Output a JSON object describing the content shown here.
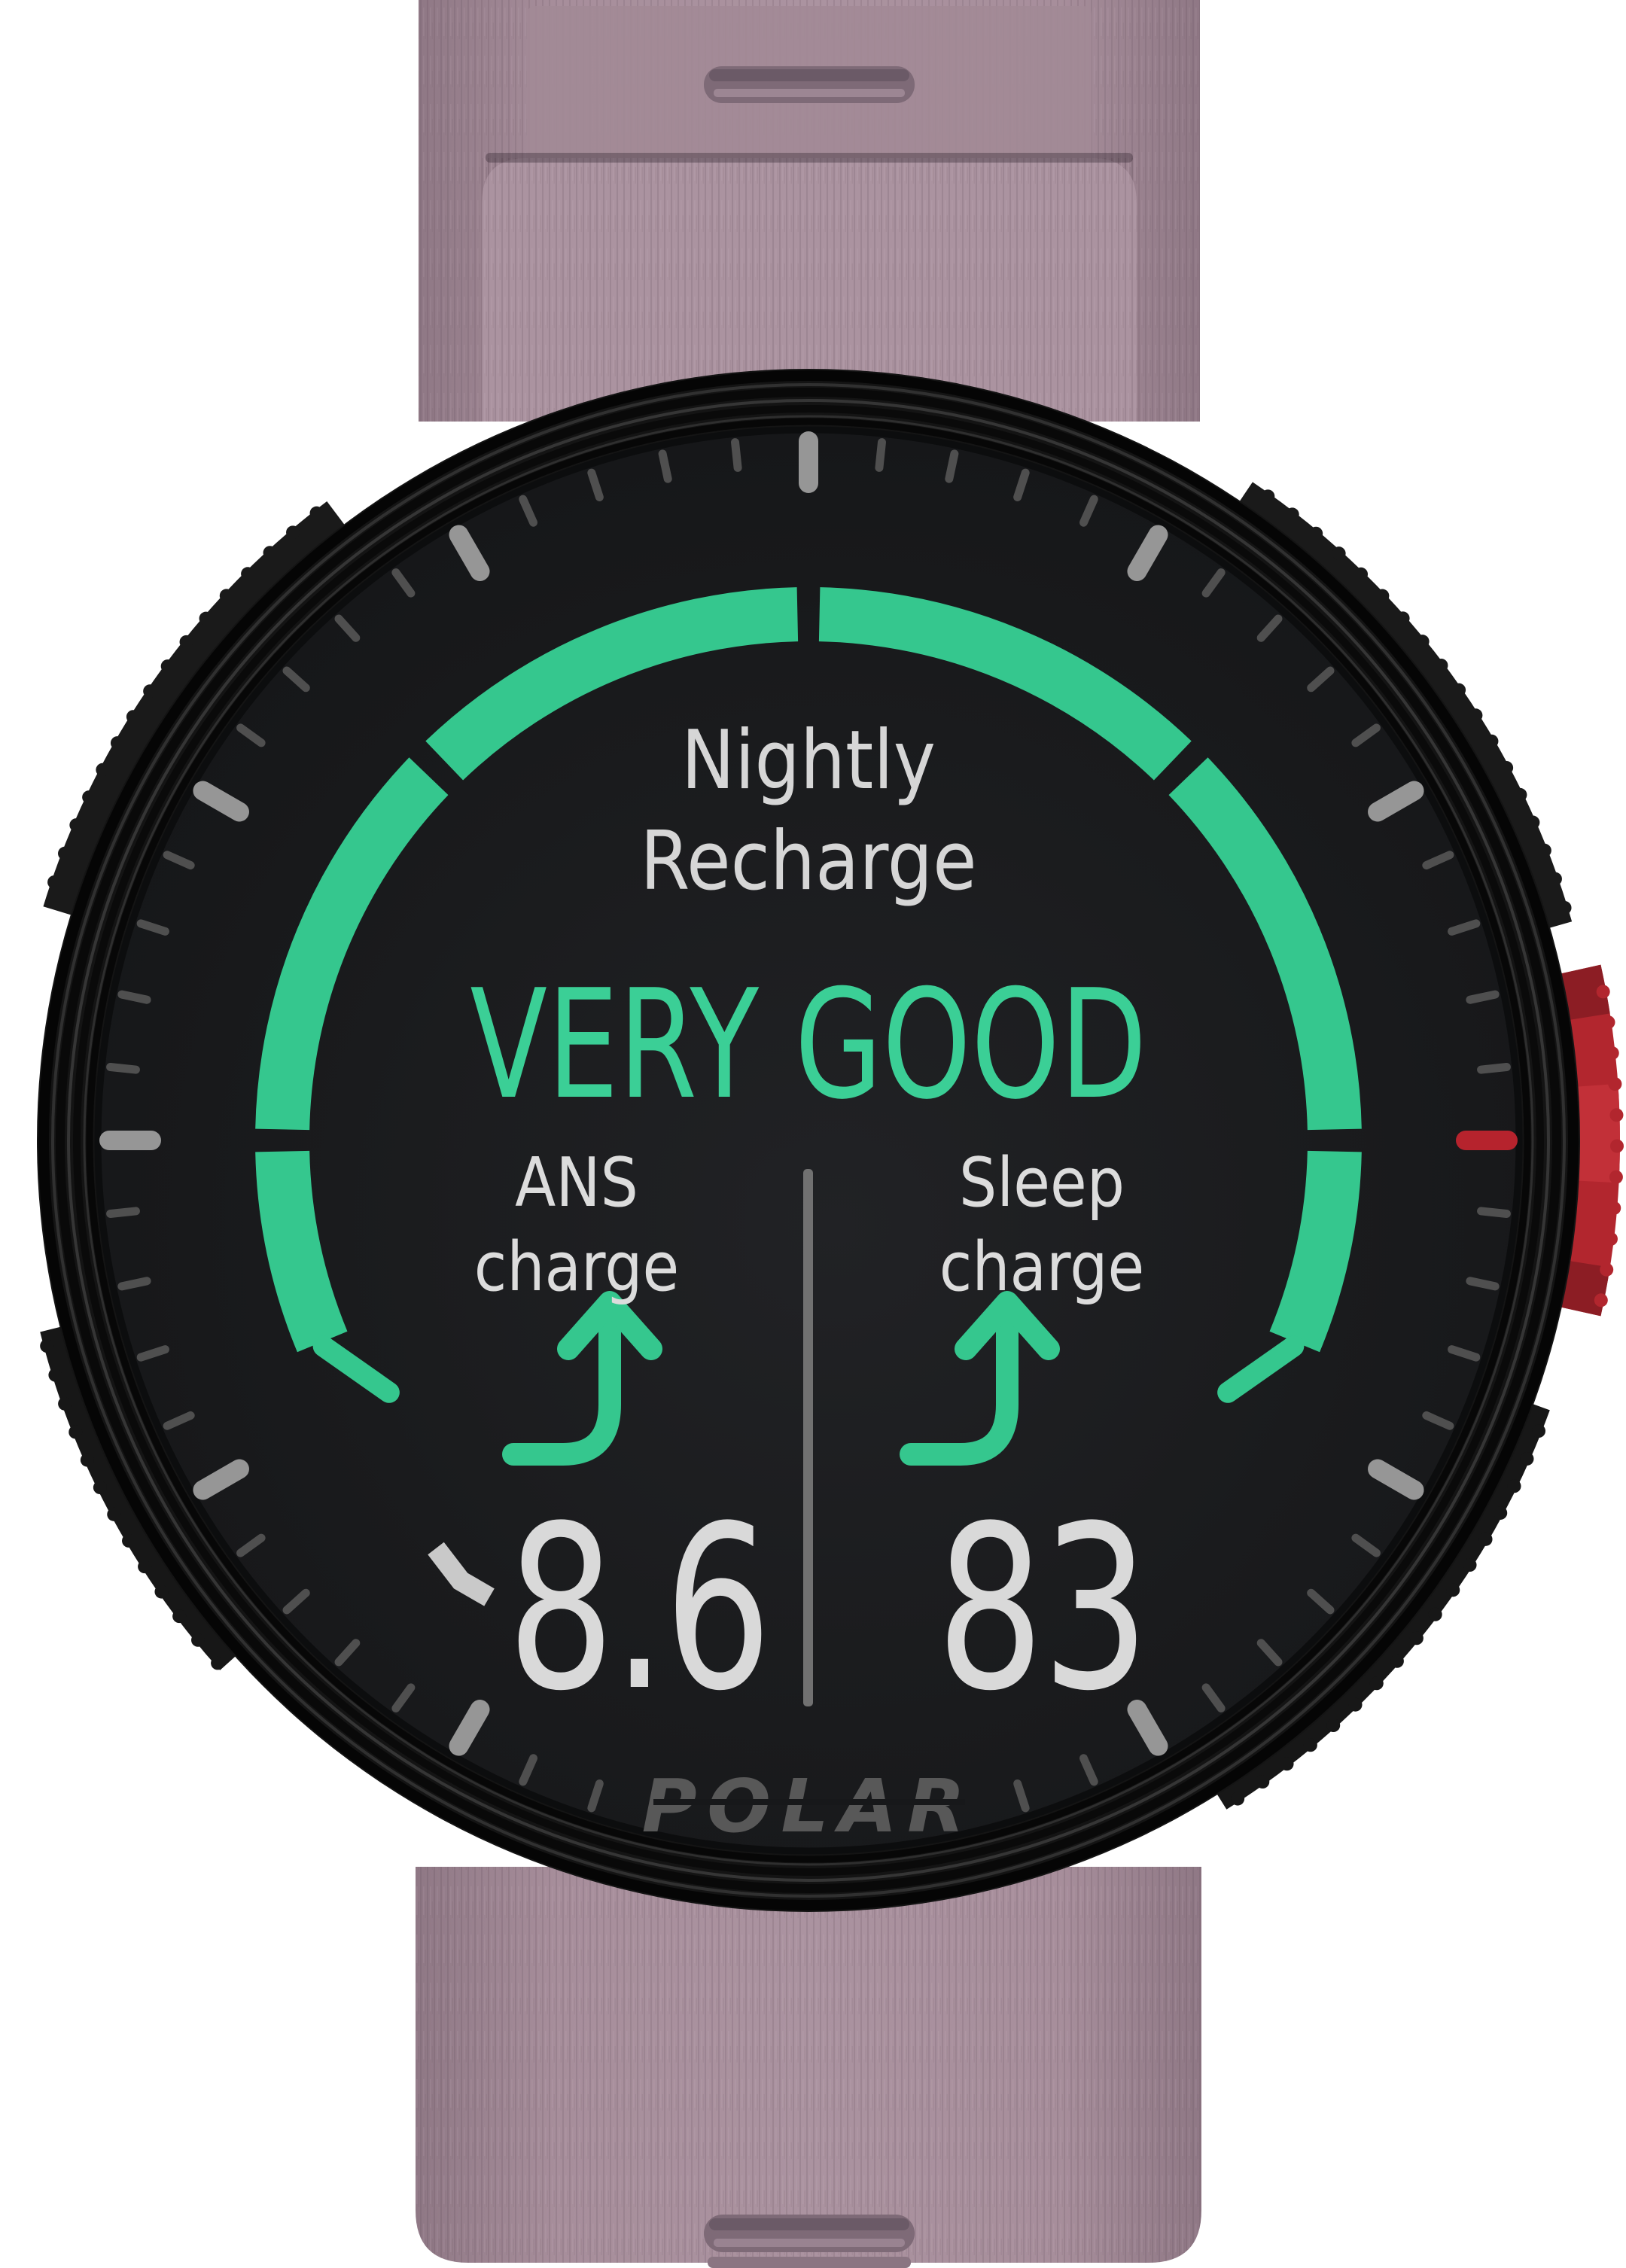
{
  "device": {
    "brand": "POLAR",
    "strap_color": "#a38a97",
    "case_color": "#141414",
    "buttons": {
      "right_center": "red-start-button",
      "left_upper": "light-button",
      "left_lower": "back-button",
      "right_upper": "up-button",
      "right_lower": "down-button",
      "button_red": "#b2262e"
    }
  },
  "screen": {
    "title_line1": "Nightly",
    "title_line2": "Recharge",
    "status": "VERY GOOD",
    "left_metric": {
      "label_line1": "ANS",
      "label_line2": "charge",
      "value": "8.6",
      "value_prefix_glyph": "clipped-plus-fragment",
      "trend": "up"
    },
    "right_metric": {
      "label_line1": "Sleep",
      "label_line2": "charge",
      "value": "83",
      "trend": "up"
    },
    "brand_logo": "POLAR"
  },
  "gauge": {
    "type": "segmented-arc",
    "segments_total": 6,
    "segments_filled": 6,
    "status_level": "VERY GOOD",
    "segments": [
      {
        "from": 202.5,
        "to": 181.2
      },
      {
        "from": 178.8,
        "to": 136.2
      },
      {
        "from": 133.8,
        "to": 91.2
      },
      {
        "from": 88.8,
        "to": 46.2
      },
      {
        "from": 43.8,
        "to": 1.2
      },
      {
        "from": -1.2,
        "to": -22.5
      }
    ]
  },
  "dial_ticks": {
    "count": 60,
    "major_every": 5,
    "red_angle_deg": 0,
    "hidden_angles": [
      258,
      264,
      270,
      276,
      282
    ]
  },
  "colors": {
    "green": "#35c78e",
    "status_green": "#3bcf96",
    "text_light": "#d6d6d6",
    "text_dim": "#dcdcdc",
    "value_text": "#d9d9d9",
    "tick_major": "#969696",
    "tick_minor": "#4f4f4f",
    "tick_red": "#b6232d",
    "logo": "#585858",
    "divider": "#717171",
    "display_bg": "#17181a",
    "case_black": "#141414",
    "strap": "#a38a97",
    "button_red": "#b2262e"
  }
}
